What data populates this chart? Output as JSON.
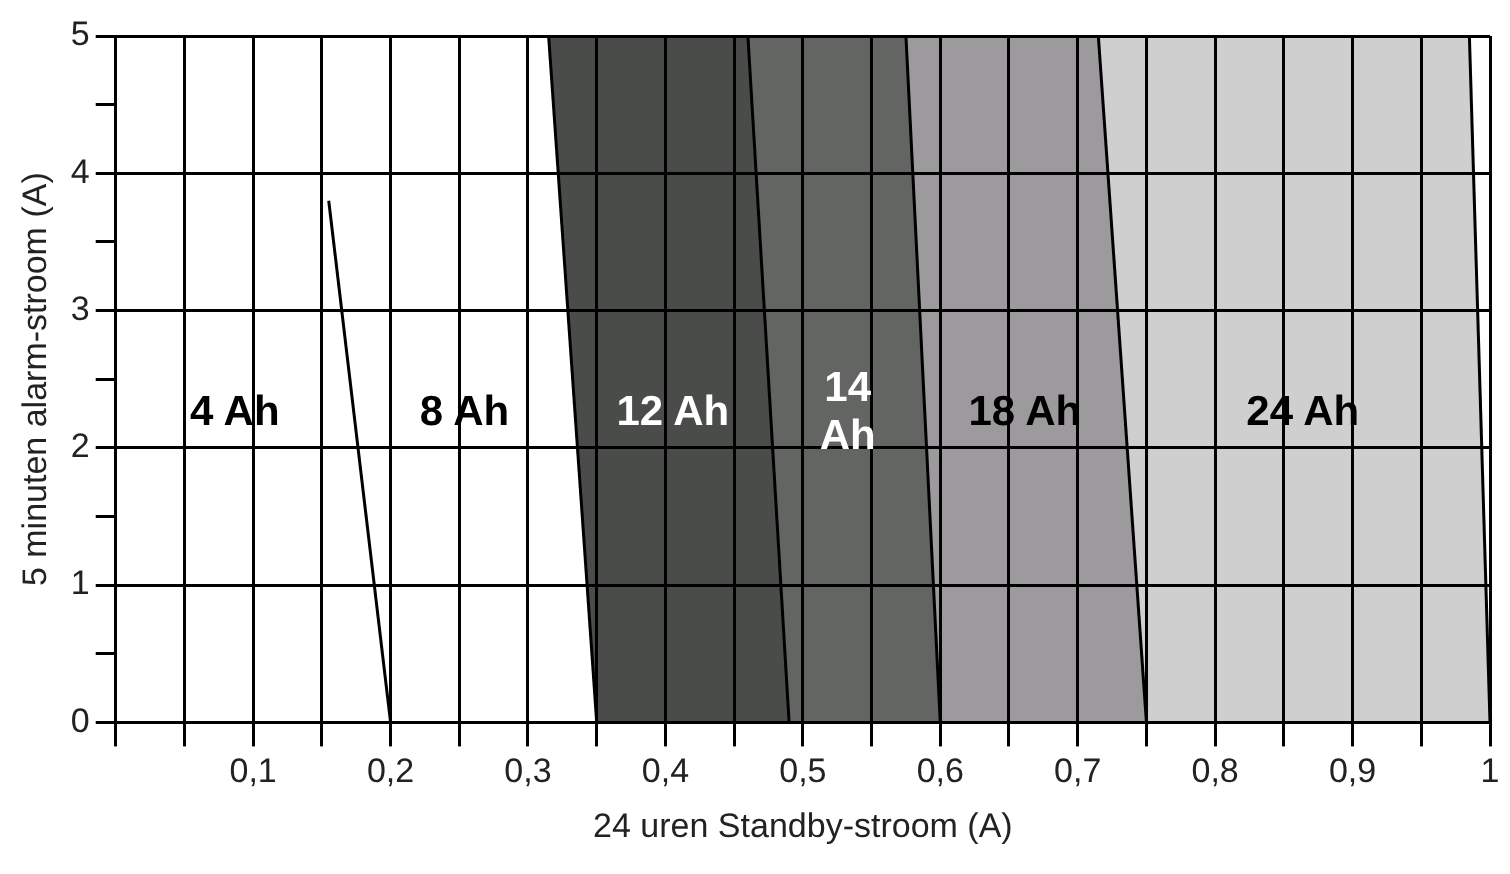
{
  "chart_data": {
    "type": "line",
    "xlabel": "24 uren Standby-stroom (A)",
    "ylabel": "5 minuten alarm-stroom (A)",
    "series": [
      {
        "name": "4 Ah",
        "color": "#000000",
        "x": [
          0.155,
          0.2
        ],
        "values": [
          3.8,
          0
        ]
      },
      {
        "name": "8 Ah",
        "color": "#000000",
        "x": [
          0.315,
          0.35
        ],
        "values": [
          5,
          0
        ]
      },
      {
        "name": "12 Ah",
        "color": "#000000",
        "x": [
          0.46,
          0.49
        ],
        "values": [
          5,
          0
        ]
      },
      {
        "name": "14 Ah",
        "color": "#000000",
        "x": [
          0.575,
          0.6
        ],
        "values": [
          5,
          0
        ]
      },
      {
        "name": "18 Ah",
        "color": "#000000",
        "x": [
          0.715,
          0.75
        ],
        "values": [
          5,
          0
        ]
      },
      {
        "name": "24 Ah",
        "color": "#000000",
        "x": [
          0.985,
          1.0
        ],
        "values": [
          5,
          0
        ]
      }
    ],
    "xlim": [
      0,
      1
    ],
    "xticks": [
      {
        "value": 0,
        "label": null
      },
      {
        "value": 0.05,
        "label": null
      },
      {
        "value": 0.1,
        "label": "0,1"
      },
      {
        "value": 0.15,
        "label": null
      },
      {
        "value": 0.2,
        "label": "0,2"
      },
      {
        "value": 0.25,
        "label": null
      },
      {
        "value": 0.3,
        "label": "0,3"
      },
      {
        "value": 0.35,
        "label": null
      },
      {
        "value": 0.4,
        "label": "0,4"
      },
      {
        "value": 0.45,
        "label": null
      },
      {
        "value": 0.5,
        "label": "0,5"
      },
      {
        "value": 0.55,
        "label": null
      },
      {
        "value": 0.6,
        "label": "0,6"
      },
      {
        "value": 0.65,
        "label": null
      },
      {
        "value": 0.7,
        "label": "0,7"
      },
      {
        "value": 0.75,
        "label": null
      },
      {
        "value": 0.8,
        "label": "0,8"
      },
      {
        "value": 0.85,
        "label": null
      },
      {
        "value": 0.9,
        "label": "0,9"
      },
      {
        "value": 0.95,
        "label": null
      },
      {
        "value": 1,
        "label": "1"
      }
    ],
    "ylim": [
      0,
      5
    ],
    "yticks": [
      0,
      {
        "value": 0.5,
        "label": null
      },
      1,
      {
        "value": 1.5,
        "label": null
      },
      2,
      {
        "value": 2.5,
        "label": null
      },
      3,
      {
        "value": 3.5,
        "label": null
      },
      4,
      {
        "value": 4.5,
        "label": null
      },
      5
    ],
    "grid": true
  }
}
